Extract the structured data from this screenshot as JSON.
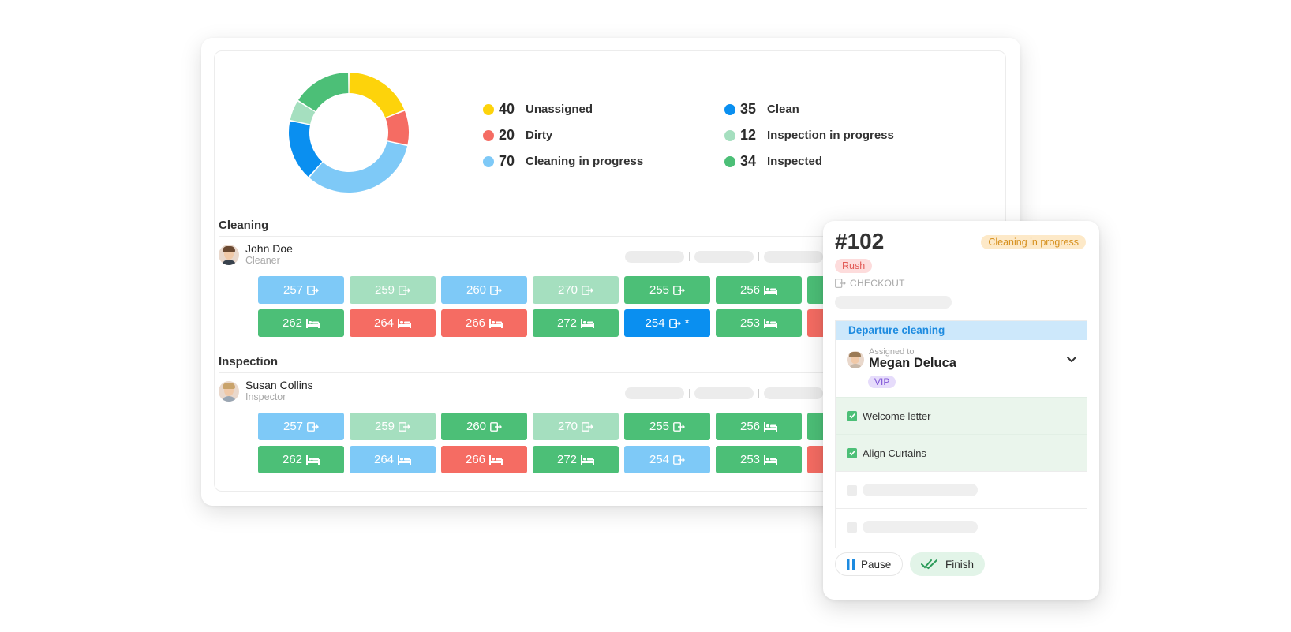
{
  "summary": {
    "legend": [
      {
        "count": "40",
        "label": "Unassigned",
        "color": "#fdd30b"
      },
      {
        "count": "20",
        "label": "Dirty",
        "color": "#f56c63"
      },
      {
        "count": "70",
        "label": "Cleaning in progress",
        "color": "#7ec9f7"
      },
      {
        "count": "35",
        "label": "Clean",
        "color": "#0a8ff0"
      },
      {
        "count": "12",
        "label": "Inspection in progress",
        "color": "#a5dfbf"
      },
      {
        "count": "34",
        "label": "Inspected",
        "color": "#4cbf77"
      }
    ]
  },
  "sections": [
    {
      "title": "Cleaning",
      "person": {
        "name": "John Doe",
        "role": "Cleaner"
      },
      "tiles": [
        {
          "room": "257",
          "icon": "checkout-icon",
          "status": "lightblue"
        },
        {
          "room": "259",
          "icon": "checkout-icon",
          "status": "mint"
        },
        {
          "room": "260",
          "icon": "checkout-icon",
          "status": "lightblue"
        },
        {
          "room": "270",
          "icon": "checkout-icon",
          "status": "mint"
        },
        {
          "room": "255",
          "icon": "checkout-icon",
          "status": "green"
        },
        {
          "room": "256",
          "icon": "bed-icon",
          "status": "green"
        },
        {
          "room": "",
          "icon": "",
          "status": "green"
        },
        {
          "room": "262",
          "icon": "bed-icon",
          "status": "green"
        },
        {
          "room": "264",
          "icon": "bed-icon",
          "status": "red"
        },
        {
          "room": "266",
          "icon": "bed-icon",
          "status": "red"
        },
        {
          "room": "272",
          "icon": "bed-icon",
          "status": "green"
        },
        {
          "room": "254",
          "icon": "checkout-icon",
          "status": "blue",
          "mark": "*"
        },
        {
          "room": "253",
          "icon": "bed-icon",
          "status": "green"
        },
        {
          "room": "",
          "icon": "",
          "status": "red"
        }
      ]
    },
    {
      "title": "Inspection",
      "person": {
        "name": "Susan Collins",
        "role": "Inspector"
      },
      "tiles": [
        {
          "room": "257",
          "icon": "checkout-icon",
          "status": "lightblue"
        },
        {
          "room": "259",
          "icon": "checkout-icon",
          "status": "mint"
        },
        {
          "room": "260",
          "icon": "checkout-icon",
          "status": "green"
        },
        {
          "room": "270",
          "icon": "checkout-icon",
          "status": "mint"
        },
        {
          "room": "255",
          "icon": "checkout-icon",
          "status": "green"
        },
        {
          "room": "256",
          "icon": "bed-icon",
          "status": "green"
        },
        {
          "room": "",
          "icon": "",
          "status": "green"
        },
        {
          "room": "262",
          "icon": "bed-icon",
          "status": "green"
        },
        {
          "room": "264",
          "icon": "bed-icon",
          "status": "lightblue"
        },
        {
          "room": "266",
          "icon": "bed-icon",
          "status": "red"
        },
        {
          "room": "272",
          "icon": "bed-icon",
          "status": "green"
        },
        {
          "room": "254",
          "icon": "checkout-icon",
          "status": "lightblue"
        },
        {
          "room": "253",
          "icon": "bed-icon",
          "status": "green"
        },
        {
          "room": "",
          "icon": "",
          "status": "red"
        }
      ]
    }
  ],
  "detail": {
    "room": "#102",
    "status": "Cleaning in progress",
    "priority": "Rush",
    "type_label": "CHECKOUT",
    "task_title": "Departure cleaning",
    "assigned_label": "Assigned to",
    "assignee": "Megan Deluca",
    "tag": "VIP",
    "checklist": [
      {
        "label": "Welcome letter",
        "checked": true
      },
      {
        "label": "Align Curtains",
        "checked": true
      }
    ],
    "pause_label": "Pause",
    "finish_label": "Finish"
  },
  "colors": {
    "lightblue": "#7ec9f7",
    "mint": "#a5dfbf",
    "green": "#4cbf77",
    "red": "#f56c63",
    "blue": "#0a8ff0",
    "yellow": "#fdd30b"
  }
}
